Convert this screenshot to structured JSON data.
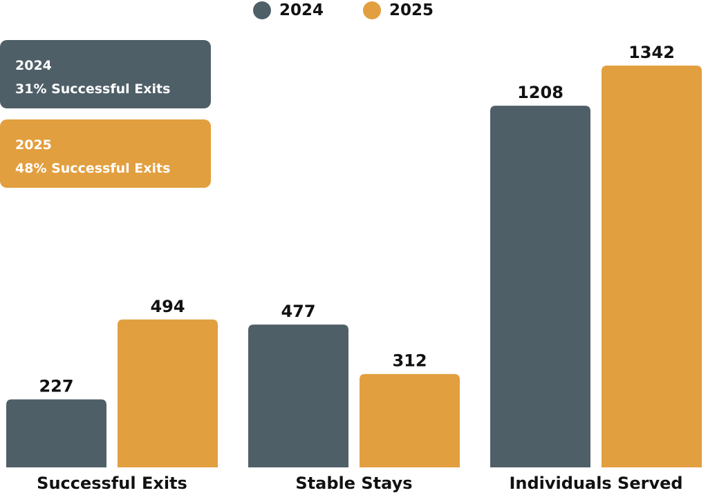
{
  "chart_data": {
    "type": "bar",
    "categories": [
      "Successful Exits",
      "Stable Stays",
      "Individuals Served"
    ],
    "series": [
      {
        "name": "2024",
        "color": "#4f5f68",
        "values": [
          227,
          477,
          1208
        ]
      },
      {
        "name": "2025",
        "color": "#e29f3f",
        "values": [
          494,
          312,
          1342
        ]
      }
    ],
    "ylim": [
      0,
      1500
    ],
    "grid": false,
    "legend": "top-center",
    "title": "",
    "xlabel": "",
    "ylabel": ""
  },
  "legend": {
    "items": [
      {
        "label": "2024",
        "color": "#4f5f68"
      },
      {
        "label": "2025",
        "color": "#e29f3f"
      }
    ]
  },
  "callouts": [
    {
      "year": "2024",
      "text": "31% Successful Exits",
      "color": "#4f5f68"
    },
    {
      "year": "2025",
      "text": "48% Successful Exits",
      "color": "#e29f3f"
    }
  ]
}
